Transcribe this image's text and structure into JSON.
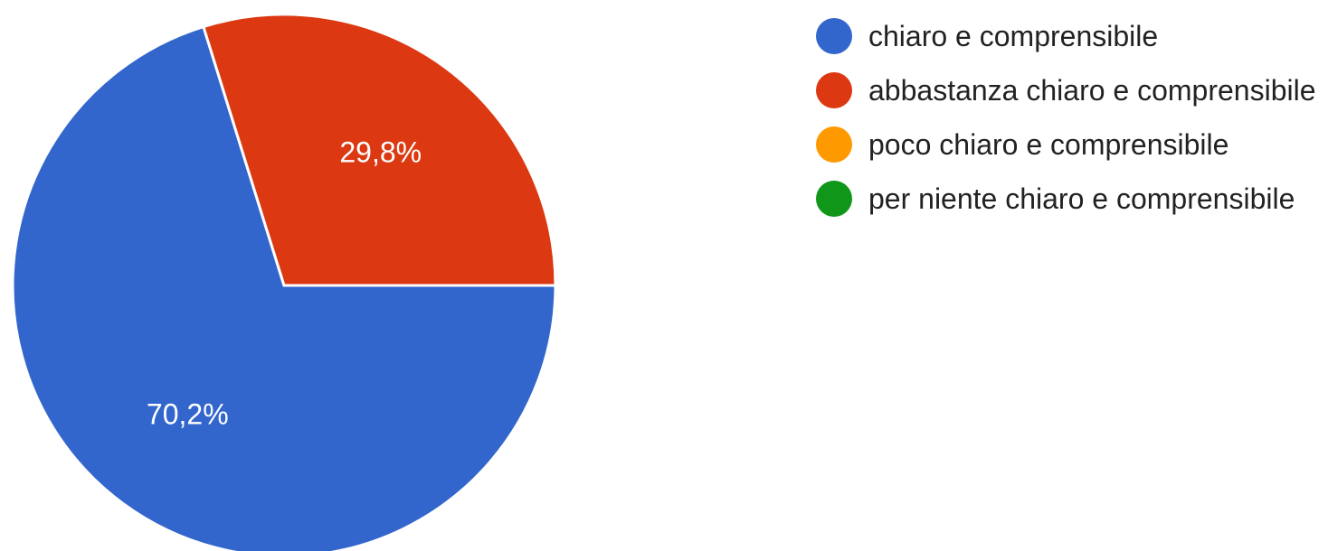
{
  "chart_data": {
    "type": "pie",
    "categories": [
      "chiaro e comprensibile",
      "abbastanza chiaro e comprensibile",
      "poco chiaro e comprensibile",
      "per niente chiaro e comprensibile"
    ],
    "values": [
      70.2,
      29.8,
      0,
      0
    ],
    "value_labels": [
      "70,2%",
      "29,8%",
      null,
      null
    ],
    "colors": [
      "#3366cc",
      "#dc3912",
      "#ff9900",
      "#109618"
    ],
    "legend": "right"
  }
}
